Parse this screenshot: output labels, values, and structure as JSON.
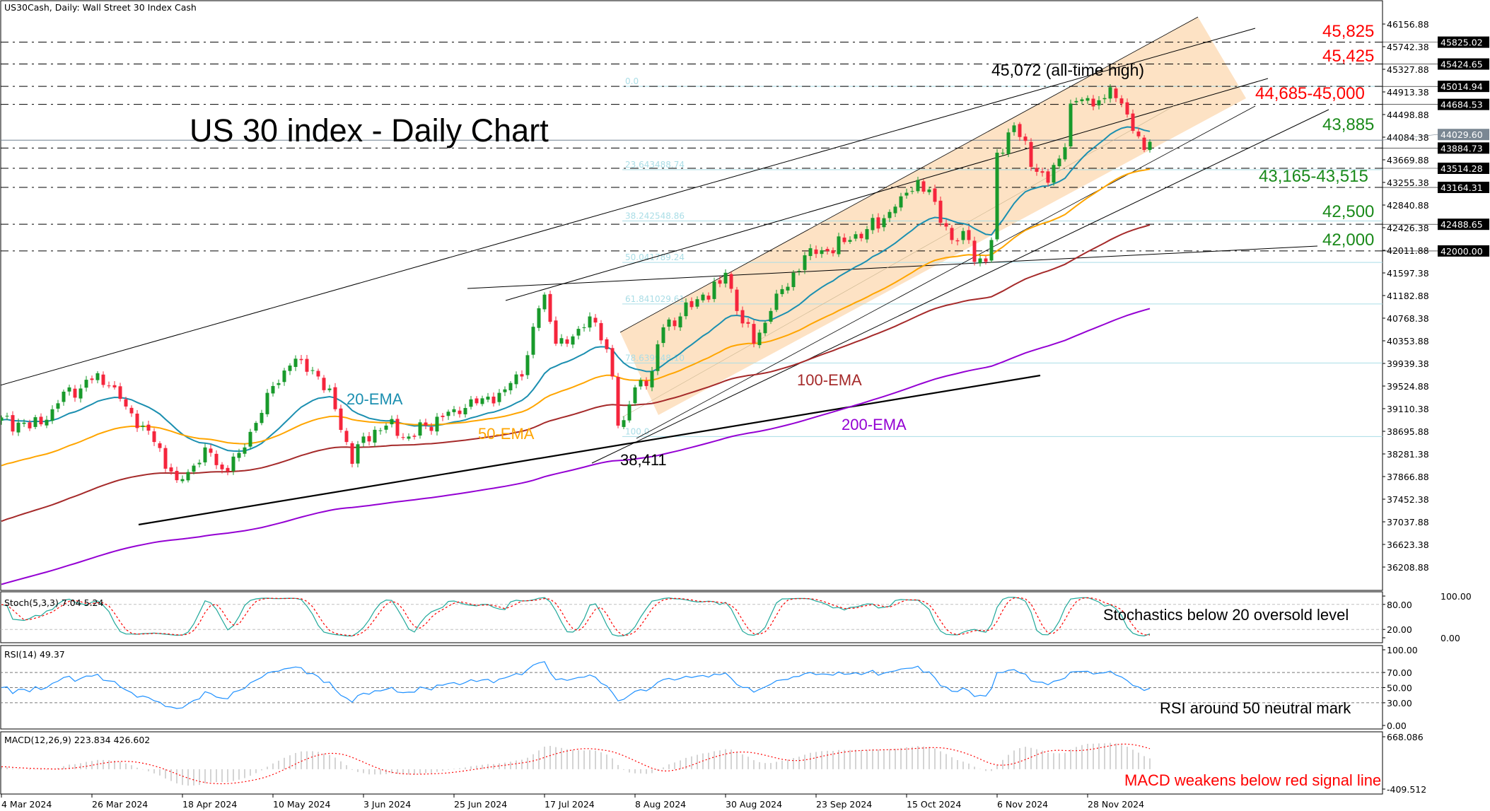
{
  "header": {
    "title": "US30Cash, Daily:  Wall Street 30 Index Cash"
  },
  "annotations": {
    "chart_title": "US 30 index - Daily Chart",
    "ath": "45,072 (all-time high)",
    "low": "38,411",
    "ema20": "20-EMA",
    "ema50": "50-EMA",
    "ema100": "100-EMA",
    "ema200": "200-EMA",
    "r1": "45,825",
    "r2": "45,425",
    "r3": "44,685-45,000",
    "s1": "43,885",
    "s2": "43,165-43,515",
    "s3": "42,500",
    "s4": "42,000",
    "stoch_note": "Stochastics below 20 oversold level",
    "rsi_note": "RSI around 50 neutral mark",
    "macd_note": "MACD weakens below red signal line"
  },
  "colors": {
    "up": "#189a2b",
    "down": "#f5253c",
    "ema20": "#1b8fb0",
    "ema50": "#ffa500",
    "ema100": "#a52a2a",
    "ema200": "#9400d3",
    "channel": "#fde2c4",
    "fib": "#aadde6",
    "resistance": "#ff0000",
    "support": "#1a8a1a"
  },
  "chart_data": [
    {
      "type": "candlestick",
      "title": "US30Cash, Daily:  Wall Street 30 Index Cash",
      "ylim": [
        35900,
        46400
      ],
      "x_tick_labels": [
        "4 Mar 2024",
        "26 Mar 2024",
        "18 Apr 2024",
        "10 May 2024",
        "3 Jun 2024",
        "25 Jun 2024",
        "17 Jul 2024",
        "8 Aug 2024",
        "30 Aug 2024",
        "23 Sep 2024",
        "15 Oct 2024",
        "6 Nov 2024",
        "28 Nov 2024"
      ],
      "y_tick_labels": [
        "46156.88",
        "45742.38",
        "45327.88",
        "44913.38",
        "44498.88",
        "44084.38",
        "43669.88",
        "43255.38",
        "42840.88",
        "42426.38",
        "42011.88",
        "41597.38",
        "41182.88",
        "40768.38",
        "40353.88",
        "39939.38",
        "39524.88",
        "39110.38",
        "38695.88",
        "38281.38",
        "37866.88",
        "37452.38",
        "37037.88",
        "36623.38",
        "36208.88"
      ],
      "close_anchors": [
        [
          0,
          38950
        ],
        [
          5,
          38750
        ],
        [
          9,
          39100
        ],
        [
          12,
          39500
        ],
        [
          14,
          39480
        ],
        [
          17,
          39760
        ],
        [
          20,
          39500
        ],
        [
          22,
          39150
        ],
        [
          25,
          38800
        ],
        [
          27,
          38500
        ],
        [
          31,
          37800
        ],
        [
          33,
          37950
        ],
        [
          36,
          38400
        ],
        [
          39,
          38000
        ],
        [
          42,
          38300
        ],
        [
          45,
          38850
        ],
        [
          47,
          39400
        ],
        [
          51,
          39900
        ],
        [
          53,
          40000
        ],
        [
          56,
          39700
        ],
        [
          59,
          39100
        ],
        [
          61,
          38500
        ],
        [
          62,
          38100
        ],
        [
          64,
          38600
        ],
        [
          68,
          38800
        ],
        [
          72,
          38600
        ],
        [
          75,
          38800
        ],
        [
          80,
          39100
        ],
        [
          85,
          39300
        ],
        [
          88,
          39400
        ],
        [
          92,
          39700
        ],
        [
          95,
          40950
        ],
        [
          96,
          41200
        ],
        [
          98,
          40300
        ],
        [
          100,
          40300
        ],
        [
          103,
          40600
        ],
        [
          104,
          40800
        ],
        [
          107,
          40200
        ],
        [
          108,
          39700
        ],
        [
          109,
          38800
        ],
        [
          110,
          38900
        ],
        [
          112,
          39500
        ],
        [
          115,
          39800
        ],
        [
          117,
          40600
        ],
        [
          120,
          40800
        ],
        [
          124,
          41200
        ],
        [
          127,
          41400
        ],
        [
          128,
          41600
        ],
        [
          130,
          40900
        ],
        [
          133,
          40300
        ],
        [
          136,
          40900
        ],
        [
          140,
          41600
        ],
        [
          143,
          42050
        ],
        [
          146,
          42000
        ],
        [
          150,
          42200
        ],
        [
          153,
          42400
        ],
        [
          156,
          42600
        ],
        [
          159,
          43000
        ],
        [
          162,
          43300
        ],
        [
          165,
          42900
        ],
        [
          168,
          42200
        ],
        [
          171,
          42200
        ],
        [
          172,
          41800
        ],
        [
          174,
          41800
        ],
        [
          175,
          42200
        ],
        [
          176,
          43800
        ],
        [
          179,
          44300
        ],
        [
          183,
          43450
        ],
        [
          185,
          43250
        ],
        [
          188,
          43900
        ],
        [
          189,
          44700
        ],
        [
          192,
          44800
        ],
        [
          195,
          44800
        ],
        [
          196,
          45000
        ],
        [
          197,
          44800
        ],
        [
          198,
          44700
        ],
        [
          199,
          44500
        ],
        [
          200,
          44200
        ],
        [
          201,
          44100
        ],
        [
          202,
          43850
        ],
        [
          203,
          44000
        ]
      ],
      "bars": 204,
      "ema_series": [
        {
          "name": "20-EMA",
          "period": 20,
          "start": 38900
        },
        {
          "name": "50-EMA",
          "period": 50,
          "start": 38030
        },
        {
          "name": "100-EMA",
          "period": 100,
          "start": 37010
        },
        {
          "name": "200-EMA",
          "period": 200,
          "start": 35860
        }
      ],
      "price_levels": [
        {
          "value": "45825.02",
          "style": "black"
        },
        {
          "value": "45424.65",
          "style": "black"
        },
        {
          "value": "45014.94",
          "style": "black"
        },
        {
          "value": "44684.53",
          "style": "black"
        },
        {
          "value": "44029.60",
          "style": "grey"
        },
        {
          "value": "43884.73",
          "style": "black"
        },
        {
          "value": "43514.28",
          "style": "black"
        },
        {
          "value": "43164.31",
          "style": "black"
        },
        {
          "value": "42488.65",
          "style": "black"
        },
        {
          "value": "42000.00",
          "style": "black"
        }
      ],
      "fibonacci": [
        {
          "level": "0.0",
          "price": "45014.94",
          "value_label": ""
        },
        {
          "level": "23.6",
          "price": "43488.74",
          "value_label": "43488.74"
        },
        {
          "level": "38.2",
          "price": "42548.86",
          "value_label": "42548.86"
        },
        {
          "level": "50.0",
          "price": "41789.24",
          "value_label": "41789.24"
        },
        {
          "level": "61.8",
          "price": "41029.61",
          "value_label": "41029.61"
        },
        {
          "level": "78.6",
          "price": "39948.10",
          "value_label": "39948.10"
        },
        {
          "level": "100.0",
          "price": "38600",
          "value_label": ""
        }
      ]
    },
    {
      "type": "line",
      "title": "Stoch(5,3,3) 7.04 5.24",
      "ylim": [
        0,
        100
      ],
      "levels": [
        20,
        80
      ],
      "y_tick_labels": [
        "100.00",
        "80.00",
        "20.00",
        "0.00"
      ]
    },
    {
      "type": "line",
      "title": "RSI(14) 49.37",
      "ylim": [
        0,
        100
      ],
      "levels": [
        30,
        50,
        70
      ],
      "y_tick_labels": [
        "100.00",
        "70.00",
        "50.00",
        "30.00",
        "0.00"
      ]
    },
    {
      "type": "bar",
      "title": "MACD(12,26,9) 223.834 426.602",
      "ylim": [
        -409.512,
        668.086
      ],
      "y_tick_labels": [
        "668.086",
        "-409.512"
      ]
    }
  ]
}
